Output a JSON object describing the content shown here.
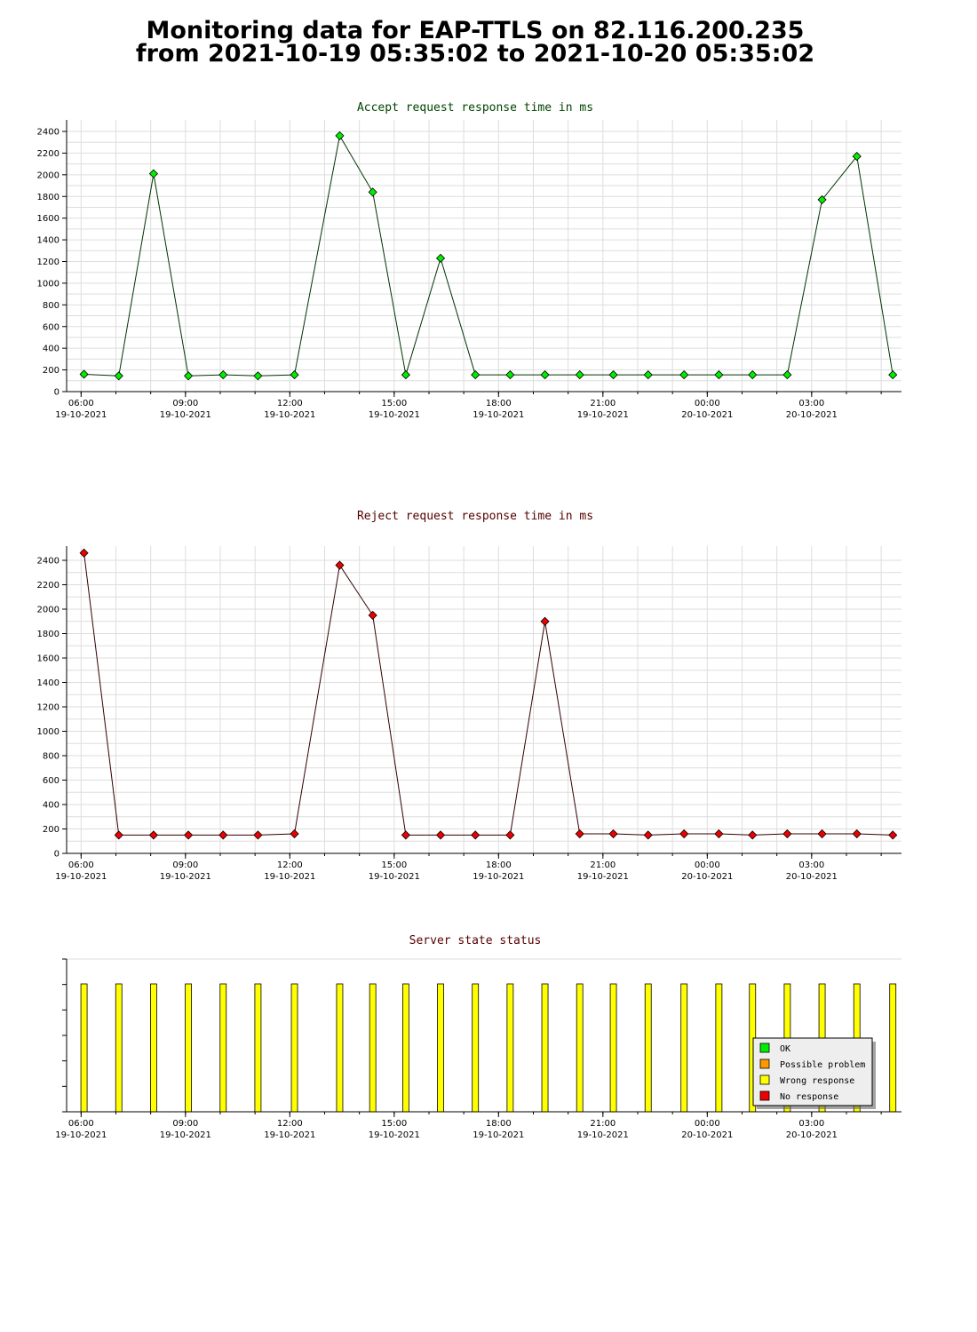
{
  "page": {
    "title_line1": "Monitoring data for EAP-TTLS on 82.116.200.235",
    "title_line2": "from 2021-10-19 05:35:02 to 2021-10-20 05:35:02"
  },
  "colors": {
    "accept_line": "#003300",
    "accept_marker": "#00ee00",
    "accept_title": "#004400",
    "reject_line": "#330000",
    "reject_marker": "#ee0000",
    "reject_title": "#550000",
    "state_bar": "#ffff00",
    "state_title": "#550000"
  },
  "chart_data": [
    {
      "type": "line",
      "title": "Accept request response time in ms",
      "xlabel": "",
      "ylabel": "",
      "ylim": [
        0,
        2500
      ],
      "yticks": [
        "0",
        "200",
        "400",
        "600",
        "800",
        "1000",
        "1200",
        "1400",
        "1600",
        "1800",
        "2000",
        "2200",
        "2400"
      ],
      "xticks": [
        {
          "time": "06:00",
          "date": "19-10-2021"
        },
        {
          "time": "09:00",
          "date": "19-10-2021"
        },
        {
          "time": "12:00",
          "date": "19-10-2021"
        },
        {
          "time": "15:00",
          "date": "19-10-2021"
        },
        {
          "time": "18:00",
          "date": "19-10-2021"
        },
        {
          "time": "21:00",
          "date": "19-10-2021"
        },
        {
          "time": "00:00",
          "date": "20-10-2021"
        },
        {
          "time": "03:00",
          "date": "20-10-2021"
        }
      ],
      "x": [
        "2021-10-19 06:05",
        "2021-10-19 07:05",
        "2021-10-19 08:05",
        "2021-10-19 09:05",
        "2021-10-19 10:05",
        "2021-10-19 11:05",
        "2021-10-19 12:08",
        "2021-10-19 13:26",
        "2021-10-19 14:23",
        "2021-10-19 15:20",
        "2021-10-19 16:20",
        "2021-10-19 17:20",
        "2021-10-19 18:20",
        "2021-10-19 19:20",
        "2021-10-19 20:20",
        "2021-10-19 21:18",
        "2021-10-19 22:18",
        "2021-10-19 23:20",
        "2021-10-20 00:20",
        "2021-10-20 01:18",
        "2021-10-20 02:18",
        "2021-10-20 03:18",
        "2021-10-20 04:18",
        "2021-10-20 05:20"
      ],
      "values": [
        160,
        145,
        2010,
        145,
        155,
        145,
        155,
        2360,
        1840,
        155,
        1230,
        155,
        155,
        155,
        155,
        155,
        155,
        155,
        155,
        155,
        155,
        1770,
        2170,
        155
      ]
    },
    {
      "type": "line",
      "title": "Reject request response time in ms",
      "xlabel": "",
      "ylabel": "",
      "ylim": [
        0,
        2500
      ],
      "yticks": [
        "0",
        "200",
        "400",
        "600",
        "800",
        "1000",
        "1200",
        "1400",
        "1600",
        "1800",
        "2000",
        "2200",
        "2400"
      ],
      "xticks": [
        {
          "time": "06:00",
          "date": "19-10-2021"
        },
        {
          "time": "09:00",
          "date": "19-10-2021"
        },
        {
          "time": "12:00",
          "date": "19-10-2021"
        },
        {
          "time": "15:00",
          "date": "19-10-2021"
        },
        {
          "time": "18:00",
          "date": "19-10-2021"
        },
        {
          "time": "21:00",
          "date": "19-10-2021"
        },
        {
          "time": "00:00",
          "date": "20-10-2021"
        },
        {
          "time": "03:00",
          "date": "20-10-2021"
        }
      ],
      "x": [
        "2021-10-19 06:05",
        "2021-10-19 07:05",
        "2021-10-19 08:05",
        "2021-10-19 09:05",
        "2021-10-19 10:05",
        "2021-10-19 11:05",
        "2021-10-19 12:08",
        "2021-10-19 13:26",
        "2021-10-19 14:23",
        "2021-10-19 15:20",
        "2021-10-19 16:20",
        "2021-10-19 17:20",
        "2021-10-19 18:20",
        "2021-10-19 19:20",
        "2021-10-19 20:20",
        "2021-10-19 21:18",
        "2021-10-19 22:18",
        "2021-10-19 23:20",
        "2021-10-20 00:20",
        "2021-10-20 01:18",
        "2021-10-20 02:18",
        "2021-10-20 03:18",
        "2021-10-20 04:18",
        "2021-10-20 05:20"
      ],
      "values": [
        2460,
        150,
        150,
        150,
        150,
        150,
        160,
        2360,
        1950,
        150,
        150,
        150,
        150,
        1900,
        160,
        160,
        150,
        160,
        160,
        150,
        160,
        160,
        160,
        150
      ]
    },
    {
      "type": "bar",
      "title": "Server state status",
      "xlabel": "",
      "ylabel": "",
      "xticks": [
        {
          "time": "06:00",
          "date": "19-10-2021"
        },
        {
          "time": "09:00",
          "date": "19-10-2021"
        },
        {
          "time": "12:00",
          "date": "19-10-2021"
        },
        {
          "time": "15:00",
          "date": "19-10-2021"
        },
        {
          "time": "18:00",
          "date": "19-10-2021"
        },
        {
          "time": "21:00",
          "date": "19-10-2021"
        },
        {
          "time": "00:00",
          "date": "20-10-2021"
        },
        {
          "time": "03:00",
          "date": "20-10-2021"
        }
      ],
      "x": [
        "2021-10-19 06:05",
        "2021-10-19 07:05",
        "2021-10-19 08:05",
        "2021-10-19 09:05",
        "2021-10-19 10:05",
        "2021-10-19 11:05",
        "2021-10-19 12:08",
        "2021-10-19 13:26",
        "2021-10-19 14:23",
        "2021-10-19 15:20",
        "2021-10-19 16:20",
        "2021-10-19 17:20",
        "2021-10-19 18:20",
        "2021-10-19 19:20",
        "2021-10-19 20:20",
        "2021-10-19 21:18",
        "2021-10-19 22:18",
        "2021-10-19 23:20",
        "2021-10-20 00:20",
        "2021-10-20 01:18",
        "2021-10-20 02:18",
        "2021-10-20 03:18",
        "2021-10-20 04:18",
        "2021-10-20 05:20"
      ],
      "states": [
        "Wrong response",
        "Wrong response",
        "Wrong response",
        "Wrong response",
        "Wrong response",
        "Wrong response",
        "Wrong response",
        "Wrong response",
        "Wrong response",
        "Wrong response",
        "Wrong response",
        "Wrong response",
        "Wrong response",
        "Wrong response",
        "Wrong response",
        "Wrong response",
        "Wrong response",
        "Wrong response",
        "Wrong response",
        "Wrong response",
        "Wrong response",
        "Wrong response",
        "Wrong response",
        "Wrong response"
      ],
      "legend_position": "bottom-right",
      "legend": [
        {
          "label": "OK",
          "color": "#00ee00"
        },
        {
          "label": "Possible problem",
          "color": "#ff9900"
        },
        {
          "label": "Wrong response",
          "color": "#ffff00"
        },
        {
          "label": "No response",
          "color": "#ee0000"
        }
      ]
    }
  ]
}
